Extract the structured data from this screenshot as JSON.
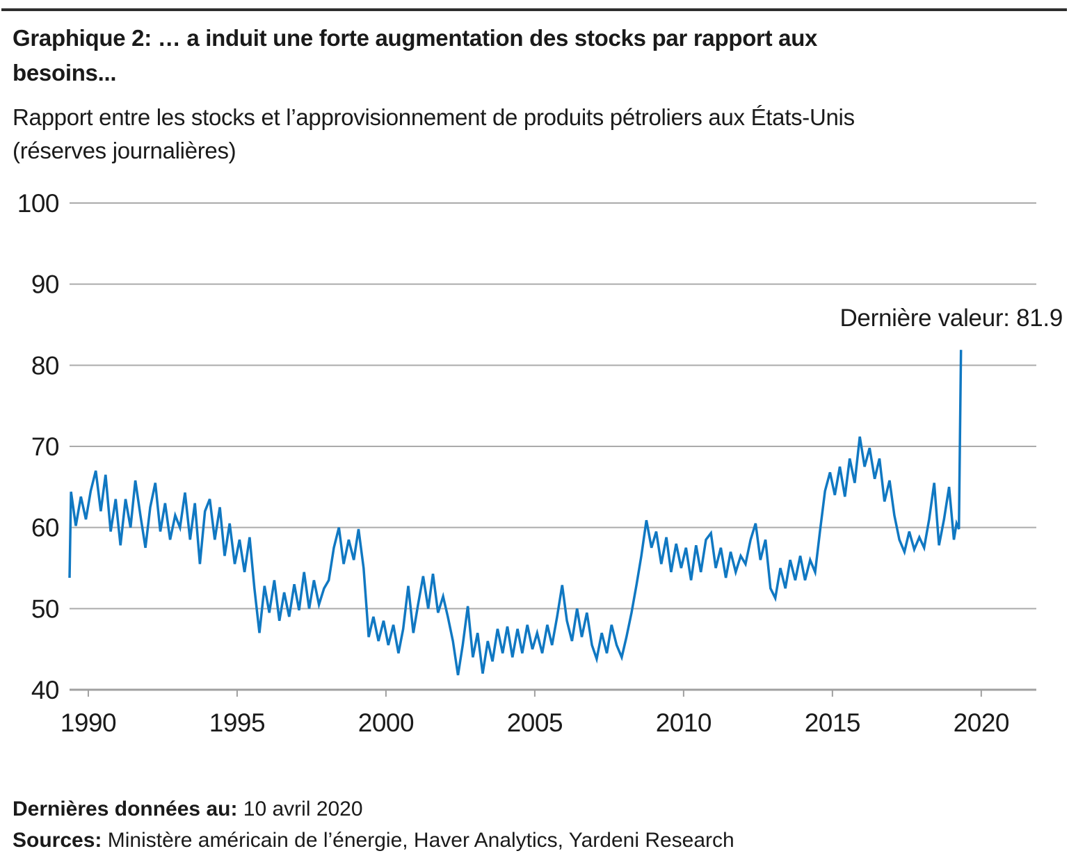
{
  "header": {
    "title_lines": [
      "Graphique 2: … a induit une forte augmentation des stocks par rapport aux",
      "besoins..."
    ],
    "subtitle_lines": [
      "Rapport entre les stocks et l’approvisionnement de produits pétroliers aux États-Unis",
      "(réserves journalières)"
    ]
  },
  "footer": {
    "last_data_label": "Dernières données au:",
    "last_data_value": " 10 avril 2020",
    "sources_label": "Sources:",
    "sources_value": " Ministère américain de l’énergie, Haver Analytics, Yardeni Research"
  },
  "chart_data": {
    "type": "line",
    "title": "Graphique 2: … a induit une forte augmentation des stocks par rapport aux besoins...",
    "subtitle": "Rapport entre les stocks et l’approvisionnement de produits pétroliers aux États-Unis (réserves journalières)",
    "annotation": "Dernière valeur: 81.9",
    "last_value": 81.9,
    "xlabel": "",
    "ylabel": "",
    "x_ticks": [
      1990,
      1995,
      2000,
      2005,
      2010,
      2015,
      2020
    ],
    "y_ticks": [
      100,
      90,
      80,
      70,
      60,
      50,
      40
    ],
    "ylim": [
      40,
      100
    ],
    "xlim": [
      1989.37,
      2021.85
    ],
    "grid": true,
    "legend": "none",
    "line_color": "#1078C2",
    "grid_color": "#ababab",
    "series": [
      {
        "name": "Rapport stocks / approvisionnement (réserves journalières)",
        "points": [
          [
            1989.37,
            53.8
          ],
          [
            1989.42,
            64.4
          ],
          [
            1989.58,
            60.2
          ],
          [
            1989.75,
            63.8
          ],
          [
            1989.92,
            61.0
          ],
          [
            1990.08,
            64.5
          ],
          [
            1990.25,
            67.0
          ],
          [
            1990.42,
            62.0
          ],
          [
            1990.58,
            66.5
          ],
          [
            1990.75,
            59.5
          ],
          [
            1990.92,
            63.5
          ],
          [
            1991.08,
            57.8
          ],
          [
            1991.25,
            63.5
          ],
          [
            1991.42,
            60.0
          ],
          [
            1991.58,
            65.8
          ],
          [
            1991.75,
            61.5
          ],
          [
            1991.92,
            57.5
          ],
          [
            1992.08,
            62.5
          ],
          [
            1992.25,
            65.5
          ],
          [
            1992.42,
            59.5
          ],
          [
            1992.58,
            63.0
          ],
          [
            1992.75,
            58.5
          ],
          [
            1992.92,
            61.5
          ],
          [
            1993.08,
            60.0
          ],
          [
            1993.25,
            64.3
          ],
          [
            1993.42,
            58.5
          ],
          [
            1993.58,
            63.0
          ],
          [
            1993.75,
            55.5
          ],
          [
            1993.92,
            62.0
          ],
          [
            1994.08,
            63.5
          ],
          [
            1994.25,
            58.5
          ],
          [
            1994.42,
            62.5
          ],
          [
            1994.58,
            56.5
          ],
          [
            1994.75,
            60.5
          ],
          [
            1994.92,
            55.5
          ],
          [
            1995.08,
            58.5
          ],
          [
            1995.25,
            54.5
          ],
          [
            1995.42,
            58.8
          ],
          [
            1995.58,
            52.5
          ],
          [
            1995.75,
            47.0
          ],
          [
            1995.92,
            52.8
          ],
          [
            1996.08,
            49.5
          ],
          [
            1996.25,
            53.5
          ],
          [
            1996.42,
            48.5
          ],
          [
            1996.58,
            52.0
          ],
          [
            1996.75,
            49.0
          ],
          [
            1996.92,
            53.0
          ],
          [
            1997.08,
            49.8
          ],
          [
            1997.25,
            54.5
          ],
          [
            1997.42,
            50.0
          ],
          [
            1997.58,
            53.5
          ],
          [
            1997.75,
            50.5
          ],
          [
            1997.92,
            52.5
          ],
          [
            1998.08,
            53.5
          ],
          [
            1998.25,
            57.5
          ],
          [
            1998.42,
            60.0
          ],
          [
            1998.58,
            55.5
          ],
          [
            1998.75,
            58.5
          ],
          [
            1998.92,
            56.0
          ],
          [
            1999.08,
            59.8
          ],
          [
            1999.25,
            55.0
          ],
          [
            1999.42,
            46.5
          ],
          [
            1999.58,
            49.0
          ],
          [
            1999.75,
            46.0
          ],
          [
            1999.92,
            48.5
          ],
          [
            2000.08,
            45.5
          ],
          [
            2000.25,
            48.0
          ],
          [
            2000.42,
            44.5
          ],
          [
            2000.58,
            47.5
          ],
          [
            2000.75,
            52.8
          ],
          [
            2000.92,
            47.0
          ],
          [
            2001.08,
            50.5
          ],
          [
            2001.25,
            54.0
          ],
          [
            2001.42,
            50.0
          ],
          [
            2001.58,
            54.3
          ],
          [
            2001.75,
            49.5
          ],
          [
            2001.92,
            51.5
          ],
          [
            2002.08,
            49.0
          ],
          [
            2002.25,
            46.0
          ],
          [
            2002.42,
            41.8
          ],
          [
            2002.58,
            45.5
          ],
          [
            2002.75,
            50.3
          ],
          [
            2002.92,
            44.0
          ],
          [
            2003.08,
            47.0
          ],
          [
            2003.25,
            42.0
          ],
          [
            2003.42,
            46.0
          ],
          [
            2003.58,
            43.5
          ],
          [
            2003.75,
            47.5
          ],
          [
            2003.92,
            44.5
          ],
          [
            2004.08,
            47.8
          ],
          [
            2004.25,
            44.0
          ],
          [
            2004.42,
            47.5
          ],
          [
            2004.58,
            44.5
          ],
          [
            2004.75,
            48.0
          ],
          [
            2004.92,
            45.0
          ],
          [
            2005.08,
            47.0
          ],
          [
            2005.25,
            44.5
          ],
          [
            2005.42,
            48.0
          ],
          [
            2005.58,
            45.5
          ],
          [
            2005.75,
            49.0
          ],
          [
            2005.92,
            52.9
          ],
          [
            2006.08,
            48.5
          ],
          [
            2006.25,
            46.0
          ],
          [
            2006.42,
            50.0
          ],
          [
            2006.58,
            46.5
          ],
          [
            2006.75,
            49.5
          ],
          [
            2006.92,
            45.5
          ],
          [
            2007.08,
            43.8
          ],
          [
            2007.25,
            47.0
          ],
          [
            2007.42,
            44.5
          ],
          [
            2007.58,
            48.0
          ],
          [
            2007.75,
            45.5
          ],
          [
            2007.92,
            44.0
          ],
          [
            2008.08,
            46.5
          ],
          [
            2008.25,
            49.5
          ],
          [
            2008.42,
            53.0
          ],
          [
            2008.58,
            56.5
          ],
          [
            2008.75,
            60.9
          ],
          [
            2008.92,
            57.5
          ],
          [
            2009.08,
            59.5
          ],
          [
            2009.25,
            55.5
          ],
          [
            2009.42,
            58.8
          ],
          [
            2009.58,
            54.5
          ],
          [
            2009.75,
            58.0
          ],
          [
            2009.92,
            55.0
          ],
          [
            2010.08,
            57.5
          ],
          [
            2010.25,
            53.5
          ],
          [
            2010.42,
            57.8
          ],
          [
            2010.58,
            54.5
          ],
          [
            2010.75,
            58.5
          ],
          [
            2010.92,
            59.3
          ],
          [
            2011.08,
            55.0
          ],
          [
            2011.25,
            57.5
          ],
          [
            2011.42,
            53.8
          ],
          [
            2011.58,
            57.0
          ],
          [
            2011.75,
            54.5
          ],
          [
            2011.92,
            56.5
          ],
          [
            2012.08,
            55.5
          ],
          [
            2012.25,
            58.5
          ],
          [
            2012.42,
            60.5
          ],
          [
            2012.58,
            56.0
          ],
          [
            2012.75,
            58.5
          ],
          [
            2012.92,
            52.5
          ],
          [
            2013.08,
            51.3
          ],
          [
            2013.25,
            55.0
          ],
          [
            2013.42,
            52.5
          ],
          [
            2013.58,
            56.0
          ],
          [
            2013.75,
            53.5
          ],
          [
            2013.92,
            56.5
          ],
          [
            2014.08,
            53.5
          ],
          [
            2014.25,
            56.0
          ],
          [
            2014.42,
            54.5
          ],
          [
            2014.58,
            59.5
          ],
          [
            2014.75,
            64.5
          ],
          [
            2014.92,
            66.8
          ],
          [
            2015.08,
            64.0
          ],
          [
            2015.25,
            67.5
          ],
          [
            2015.42,
            63.8
          ],
          [
            2015.58,
            68.5
          ],
          [
            2015.75,
            65.5
          ],
          [
            2015.92,
            71.2
          ],
          [
            2016.08,
            67.5
          ],
          [
            2016.25,
            69.8
          ],
          [
            2016.42,
            66.0
          ],
          [
            2016.58,
            68.5
          ],
          [
            2016.75,
            63.2
          ],
          [
            2016.92,
            65.8
          ],
          [
            2017.08,
            61.5
          ],
          [
            2017.25,
            58.5
          ],
          [
            2017.42,
            57.0
          ],
          [
            2017.58,
            59.5
          ],
          [
            2017.75,
            57.3
          ],
          [
            2017.92,
            58.8
          ],
          [
            2018.08,
            57.5
          ],
          [
            2018.25,
            61.0
          ],
          [
            2018.42,
            65.5
          ],
          [
            2018.58,
            57.8
          ],
          [
            2018.75,
            61.0
          ],
          [
            2018.92,
            65.0
          ],
          [
            2019.08,
            58.5
          ],
          [
            2019.17,
            60.5
          ],
          [
            2019.25,
            59.8
          ],
          [
            2019.32,
            81.9
          ]
        ]
      }
    ]
  }
}
